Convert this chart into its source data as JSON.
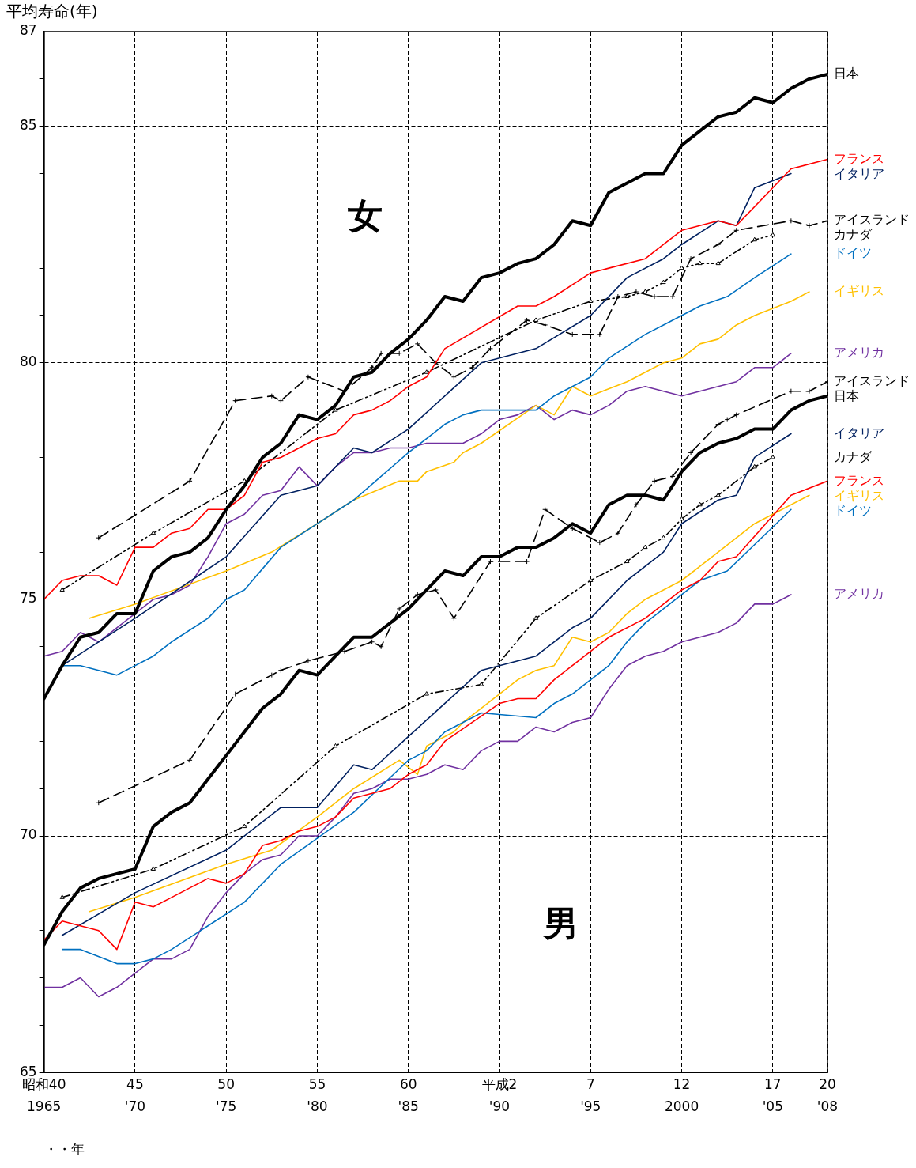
{
  "chart_data": {
    "type": "line",
    "xlabel": "・・年",
    "ylabel": "平均寿命(年)",
    "xlim": [
      1965,
      2008
    ],
    "ylim": [
      65,
      87
    ],
    "xticks": [
      1965,
      {
        "value": 1970,
        "label": "'70"
      },
      {
        "value": 1975,
        "label": "'75"
      },
      {
        "value": 1980,
        "label": "'80"
      },
      {
        "value": 1985,
        "label": "'85"
      },
      {
        "value": 1990,
        "label": "'90"
      },
      {
        "value": 1995,
        "label": "'95"
      },
      2000,
      {
        "value": 2005,
        "label": "'05"
      },
      {
        "value": 2008,
        "label": "'08"
      }
    ],
    "yticks": [
      65,
      {
        "value": 66,
        "label": null
      },
      {
        "value": 67,
        "label": null
      },
      {
        "value": 68,
        "label": null
      },
      {
        "value": 69,
        "label": null
      },
      70,
      {
        "value": 71,
        "label": null
      },
      {
        "value": 72,
        "label": null
      },
      {
        "value": 73,
        "label": null
      },
      {
        "value": 74,
        "label": null
      },
      75,
      {
        "value": 76,
        "label": null
      },
      {
        "value": 77,
        "label": null
      },
      {
        "value": 78,
        "label": null
      },
      {
        "value": 79,
        "label": null
      },
      80,
      {
        "value": 81,
        "label": null
      },
      {
        "value": 82,
        "label": null
      },
      {
        "value": 83,
        "label": null
      },
      {
        "value": 84,
        "label": null
      },
      85,
      {
        "value": 86,
        "label": null
      },
      87
    ],
    "grid": true,
    "annotations": [
      "女",
      "男",
      "昭和40",
      "45",
      "50",
      "55",
      "60",
      "平成2",
      "7",
      "12",
      "17",
      "20"
    ],
    "series": [
      {
        "name": "日本",
        "color": "#000000",
        "x": [
          1965,
          1966,
          1967,
          1968,
          1969,
          1970,
          1971,
          1972,
          1973,
          1974,
          1975,
          1976,
          1977,
          1978,
          1979,
          1980,
          1981,
          1982,
          1983,
          1984,
          1985,
          1986,
          1987,
          1988,
          1989,
          1990,
          1991,
          1992,
          1993,
          1994,
          1995,
          1996,
          1997,
          1998,
          1999,
          2000,
          2001,
          2002,
          2003,
          2004,
          2005,
          2006,
          2007,
          2008
        ],
        "values": [
          72.9,
          73.6,
          74.2,
          74.3,
          74.7,
          74.7,
          75.6,
          75.9,
          76.0,
          76.3,
          76.9,
          77.4,
          78.0,
          78.3,
          78.9,
          78.8,
          79.1,
          79.7,
          79.8,
          80.2,
          80.5,
          80.9,
          81.4,
          81.3,
          81.8,
          81.9,
          82.1,
          82.2,
          82.5,
          83.0,
          82.9,
          83.6,
          83.8,
          84.0,
          84.0,
          84.6,
          84.9,
          85.2,
          85.3,
          85.6,
          85.5,
          85.8,
          86.0,
          86.1
        ]
      },
      {
        "name": "フランス",
        "color": "#ff0000",
        "x": [
          1965,
          1966,
          1967,
          1968,
          1969,
          1970,
          1971,
          1972,
          1973,
          1974,
          1975,
          1976,
          1977,
          1978,
          1979,
          1980,
          1981,
          1982,
          1983,
          1984,
          1985,
          1986,
          1987,
          1991,
          1992,
          1993,
          1995,
          1996,
          1998,
          1999,
          2000,
          2001,
          2002,
          2003,
          2006,
          2008
        ],
        "values": [
          75.0,
          75.4,
          75.5,
          75.5,
          75.3,
          76.1,
          76.1,
          76.4,
          76.5,
          76.9,
          76.9,
          77.2,
          77.9,
          78.0,
          78.2,
          78.4,
          78.5,
          78.9,
          79.0,
          79.2,
          79.5,
          79.7,
          80.3,
          81.2,
          81.2,
          81.4,
          81.9,
          82.0,
          82.2,
          82.5,
          82.8,
          82.9,
          83.0,
          82.9,
          84.1,
          84.3
        ]
      },
      {
        "name": "イタリア",
        "color": "#002060",
        "x": [
          1966,
          1970,
          1975,
          1978,
          1980,
          1982,
          1983,
          1985,
          1989,
          1992,
          1995,
          1997,
          1999,
          2000,
          2002,
          2003,
          2004,
          2006
        ],
        "values": [
          73.6,
          74.6,
          75.9,
          77.2,
          77.4,
          78.2,
          78.1,
          78.6,
          80.0,
          80.3,
          81.0,
          81.8,
          82.2,
          82.5,
          83.0,
          82.9,
          83.7,
          84.0
        ]
      },
      {
        "name": "アイスランド",
        "color": "#000000",
        "line_style": "dashed",
        "marker": "cross",
        "x": [
          1968,
          1973,
          1975.5,
          1977.5,
          1978,
          1979.5,
          1981.5,
          1983,
          1983.5,
          1984.5,
          1985.5,
          1986.5,
          1987.5,
          1988.5,
          1989.5,
          1991.5,
          1992.5,
          1994,
          1995.5,
          1996.5,
          1997.5,
          1998.5,
          1999.5,
          2000.5,
          2002,
          2003,
          2006,
          2007,
          2008
        ],
        "values": [
          76.3,
          77.5,
          79.2,
          79.3,
          79.2,
          79.7,
          79.4,
          79.9,
          80.2,
          80.2,
          80.4,
          80.0,
          79.7,
          79.9,
          80.3,
          80.9,
          80.8,
          80.6,
          80.6,
          81.4,
          81.5,
          81.4,
          81.4,
          82.2,
          82.5,
          82.8,
          83.0,
          82.9,
          83.0
        ]
      },
      {
        "name": "カナダ",
        "color": "#000000",
        "line_style": "dotted",
        "marker": "triangle",
        "x": [
          1966,
          1971,
          1976,
          1981,
          1986,
          1992,
          1995,
          1997,
          1998,
          1999,
          2000,
          2001,
          2002,
          2004,
          2005
        ],
        "values": [
          75.2,
          76.4,
          77.5,
          79.0,
          79.8,
          80.9,
          81.3,
          81.4,
          81.5,
          81.7,
          82.0,
          82.1,
          82.1,
          82.6,
          82.7
        ]
      },
      {
        "name": "ドイツ",
        "color": "#0070c0",
        "x": [
          1966,
          1967,
          1969,
          1971,
          1972,
          1974,
          1975,
          1976,
          1978,
          1982,
          1985,
          1986,
          1987,
          1988,
          1989,
          1992,
          1993,
          1994,
          1995,
          1996,
          1998,
          1999,
          2000,
          2001,
          2002.5,
          2004,
          2006
        ],
        "values": [
          73.6,
          73.6,
          73.4,
          73.8,
          74.1,
          74.6,
          75.0,
          75.2,
          76.1,
          77.1,
          78.1,
          78.4,
          78.7,
          78.9,
          79.0,
          79.0,
          79.3,
          79.5,
          79.7,
          80.1,
          80.6,
          80.8,
          81.0,
          81.2,
          81.4,
          81.8,
          82.3
        ]
      },
      {
        "name": "イギリス",
        "color": "#ffc000",
        "x": [
          1967.5,
          1970,
          1975,
          1977.5,
          1980,
          1982,
          1984.5,
          1985.5,
          1986,
          1987.5,
          1988,
          1989,
          1992,
          1993,
          1994,
          1995,
          1997,
          1999,
          2000,
          2001,
          2002,
          2003,
          2004,
          2006,
          2007
        ],
        "values": [
          74.6,
          74.9,
          75.6,
          76.0,
          76.6,
          77.1,
          77.5,
          77.5,
          77.7,
          77.9,
          78.1,
          78.3,
          79.1,
          78.9,
          79.5,
          79.3,
          79.6,
          80.0,
          80.1,
          80.4,
          80.5,
          80.8,
          81.0,
          81.3,
          81.5
        ]
      },
      {
        "name": "アメリカ",
        "color": "#7030a0",
        "x": [
          1965,
          1966,
          1967,
          1968,
          1969,
          1970,
          1971,
          1972,
          1973,
          1974,
          1975,
          1976,
          1977,
          1978,
          1979,
          1980,
          1981,
          1982,
          1983,
          1984,
          1985,
          1986,
          1987,
          1988,
          1989,
          1990,
          1991,
          1992,
          1993,
          1994,
          1995,
          1996,
          1997,
          1998,
          1999,
          2000,
          2001,
          2002,
          2003,
          2004,
          2005,
          2006
        ],
        "values": [
          73.8,
          73.9,
          74.3,
          74.1,
          74.4,
          74.7,
          75.0,
          75.1,
          75.3,
          75.9,
          76.6,
          76.8,
          77.2,
          77.3,
          77.8,
          77.4,
          77.8,
          78.1,
          78.1,
          78.2,
          78.2,
          78.3,
          78.3,
          78.3,
          78.5,
          78.8,
          78.9,
          79.1,
          78.8,
          79.0,
          78.9,
          79.1,
          79.4,
          79.5,
          79.4,
          79.3,
          79.4,
          79.5,
          79.6,
          79.9,
          79.9,
          80.2
        ]
      },
      {
        "name": "日本",
        "color": "#000000",
        "x": [
          1965,
          1966,
          1967,
          1968,
          1969,
          1970,
          1971,
          1972,
          1973,
          1974,
          1975,
          1976,
          1977,
          1978,
          1979,
          1980,
          1981,
          1982,
          1983,
          1984,
          1985,
          1986,
          1987,
          1988,
          1989,
          1990,
          1991,
          1992,
          1993,
          1994,
          1995,
          1996,
          1997,
          1998,
          1999,
          2000,
          2001,
          2002,
          2003,
          2004,
          2005,
          2006,
          2007,
          2008
        ],
        "values": [
          67.7,
          68.4,
          68.9,
          69.1,
          69.2,
          69.3,
          70.2,
          70.5,
          70.7,
          71.2,
          71.7,
          72.2,
          72.7,
          73.0,
          73.5,
          73.4,
          73.8,
          74.2,
          74.2,
          74.5,
          74.8,
          75.2,
          75.6,
          75.5,
          75.9,
          75.9,
          76.1,
          76.1,
          76.3,
          76.6,
          76.4,
          77.0,
          77.2,
          77.2,
          77.1,
          77.7,
          78.1,
          78.3,
          78.4,
          78.6,
          78.6,
          79.0,
          79.2,
          79.3
        ]
      },
      {
        "name": "フランス",
        "color": "#ff0000",
        "x": [
          1965,
          1966,
          1967,
          1968,
          1969,
          1970,
          1971,
          1972,
          1973,
          1974,
          1975,
          1976,
          1977,
          1978,
          1979,
          1980,
          1981,
          1982,
          1983,
          1984,
          1985,
          1986,
          1987,
          1990,
          1991,
          1992,
          1993,
          1995,
          1996,
          1998,
          1999,
          2000,
          2001,
          2002,
          2003,
          2006,
          2008
        ],
        "values": [
          67.8,
          68.2,
          68.1,
          68.0,
          67.6,
          68.6,
          68.5,
          68.7,
          68.9,
          69.1,
          69.0,
          69.2,
          69.8,
          69.9,
          70.1,
          70.2,
          70.4,
          70.8,
          70.9,
          71.0,
          71.3,
          71.5,
          72.0,
          72.8,
          72.9,
          72.9,
          73.3,
          73.9,
          74.2,
          74.6,
          74.9,
          75.2,
          75.4,
          75.8,
          75.9,
          77.2,
          77.5
        ]
      },
      {
        "name": "イタリア",
        "color": "#002060",
        "x": [
          1966,
          1970,
          1975,
          1978,
          1980,
          1982,
          1983,
          1985,
          1989,
          1990,
          1992,
          1994,
          1995,
          1997,
          1999,
          2000,
          2002,
          2003,
          2004,
          2006
        ],
        "values": [
          67.9,
          68.8,
          69.7,
          70.6,
          70.6,
          71.5,
          71.4,
          72.1,
          73.5,
          73.6,
          73.8,
          74.4,
          74.6,
          75.4,
          76.0,
          76.6,
          77.1,
          77.2,
          78.0,
          78.5
        ]
      },
      {
        "name": "アイスランド",
        "color": "#000000",
        "line_style": "dashed",
        "marker": "cross",
        "x": [
          1968,
          1973,
          1975.5,
          1977.5,
          1978,
          1979.5,
          1981.5,
          1983,
          1983.5,
          1984.5,
          1985.5,
          1986.5,
          1987.5,
          1989.5,
          1991.5,
          1992.5,
          1994,
          1995.5,
          1996.5,
          1997.5,
          1998.5,
          1999.5,
          2000.5,
          2002,
          2002.5,
          2003,
          2006,
          2007,
          2008
        ],
        "values": [
          70.7,
          71.6,
          73.0,
          73.4,
          73.5,
          73.7,
          73.9,
          74.1,
          74.0,
          74.8,
          75.1,
          75.2,
          74.6,
          75.8,
          75.8,
          76.9,
          76.5,
          76.2,
          76.4,
          77.0,
          77.5,
          77.6,
          78.1,
          78.7,
          78.8,
          78.9,
          79.4,
          79.4,
          79.6
        ]
      },
      {
        "name": "カナダ",
        "color": "#000000",
        "line_style": "dotted",
        "marker": "triangle",
        "x": [
          1966,
          1971,
          1976,
          1981,
          1986,
          1989,
          1992,
          1995,
          1997,
          1998,
          1999,
          2000,
          2001,
          2002,
          2004,
          2005
        ],
        "values": [
          68.7,
          69.3,
          70.2,
          71.9,
          73.0,
          73.2,
          74.6,
          75.4,
          75.8,
          76.1,
          76.3,
          76.7,
          77.0,
          77.2,
          77.8,
          78.0
        ]
      },
      {
        "name": "ドイツ",
        "color": "#0070c0",
        "x": [
          1966,
          1967,
          1969,
          1970,
          1971,
          1972,
          1974,
          1976,
          1978,
          1982,
          1985,
          1986,
          1987,
          1988,
          1989,
          1992,
          1993,
          1994,
          1995,
          1996,
          1997,
          1998,
          1999,
          2000,
          2001,
          2002.5,
          2006
        ],
        "values": [
          67.6,
          67.6,
          67.3,
          67.3,
          67.4,
          67.6,
          68.1,
          68.6,
          69.4,
          70.5,
          71.6,
          71.8,
          72.2,
          72.4,
          72.6,
          72.5,
          72.8,
          73.0,
          73.3,
          73.6,
          74.1,
          74.5,
          74.8,
          75.1,
          75.4,
          75.6,
          76.9
        ]
      },
      {
        "name": "イギリス",
        "color": "#ffc000",
        "x": [
          1967.5,
          1970,
          1975,
          1977.5,
          1980,
          1982,
          1984.5,
          1985.5,
          1986,
          1987.5,
          1988,
          1989,
          1991,
          1992,
          1993,
          1994,
          1995,
          1996,
          1997,
          1998,
          1999,
          2000,
          2001,
          2002,
          2003,
          2004,
          2005,
          2007
        ],
        "values": [
          68.4,
          68.7,
          69.4,
          69.7,
          70.4,
          71.0,
          71.6,
          71.3,
          71.9,
          72.2,
          72.4,
          72.7,
          73.3,
          73.5,
          73.6,
          74.2,
          74.1,
          74.3,
          74.7,
          75.0,
          75.2,
          75.4,
          75.7,
          76.0,
          76.3,
          76.6,
          76.8,
          77.2
        ]
      },
      {
        "name": "アメリカ",
        "color": "#7030a0",
        "x": [
          1965,
          1966,
          1967,
          1968,
          1969,
          1970,
          1971,
          1972,
          1973,
          1974,
          1975,
          1976,
          1977,
          1978,
          1979,
          1980,
          1981,
          1982,
          1983,
          1984,
          1985,
          1986,
          1987,
          1988,
          1989,
          1990,
          1991,
          1992,
          1993,
          1994,
          1995,
          1996,
          1997,
          1998,
          1999,
          2000,
          2001,
          2002,
          2003,
          2004,
          2005,
          2006
        ],
        "values": [
          66.8,
          66.8,
          67.0,
          66.6,
          66.8,
          67.1,
          67.4,
          67.4,
          67.6,
          68.3,
          68.8,
          69.2,
          69.5,
          69.6,
          70.0,
          70.0,
          70.4,
          70.9,
          71.0,
          71.2,
          71.2,
          71.3,
          71.5,
          71.4,
          71.8,
          72.0,
          72.0,
          72.3,
          72.2,
          72.4,
          72.5,
          73.1,
          73.6,
          73.8,
          73.9,
          74.1,
          74.2,
          74.3,
          74.5,
          74.9,
          74.9,
          75.1
        ]
      }
    ]
  }
}
